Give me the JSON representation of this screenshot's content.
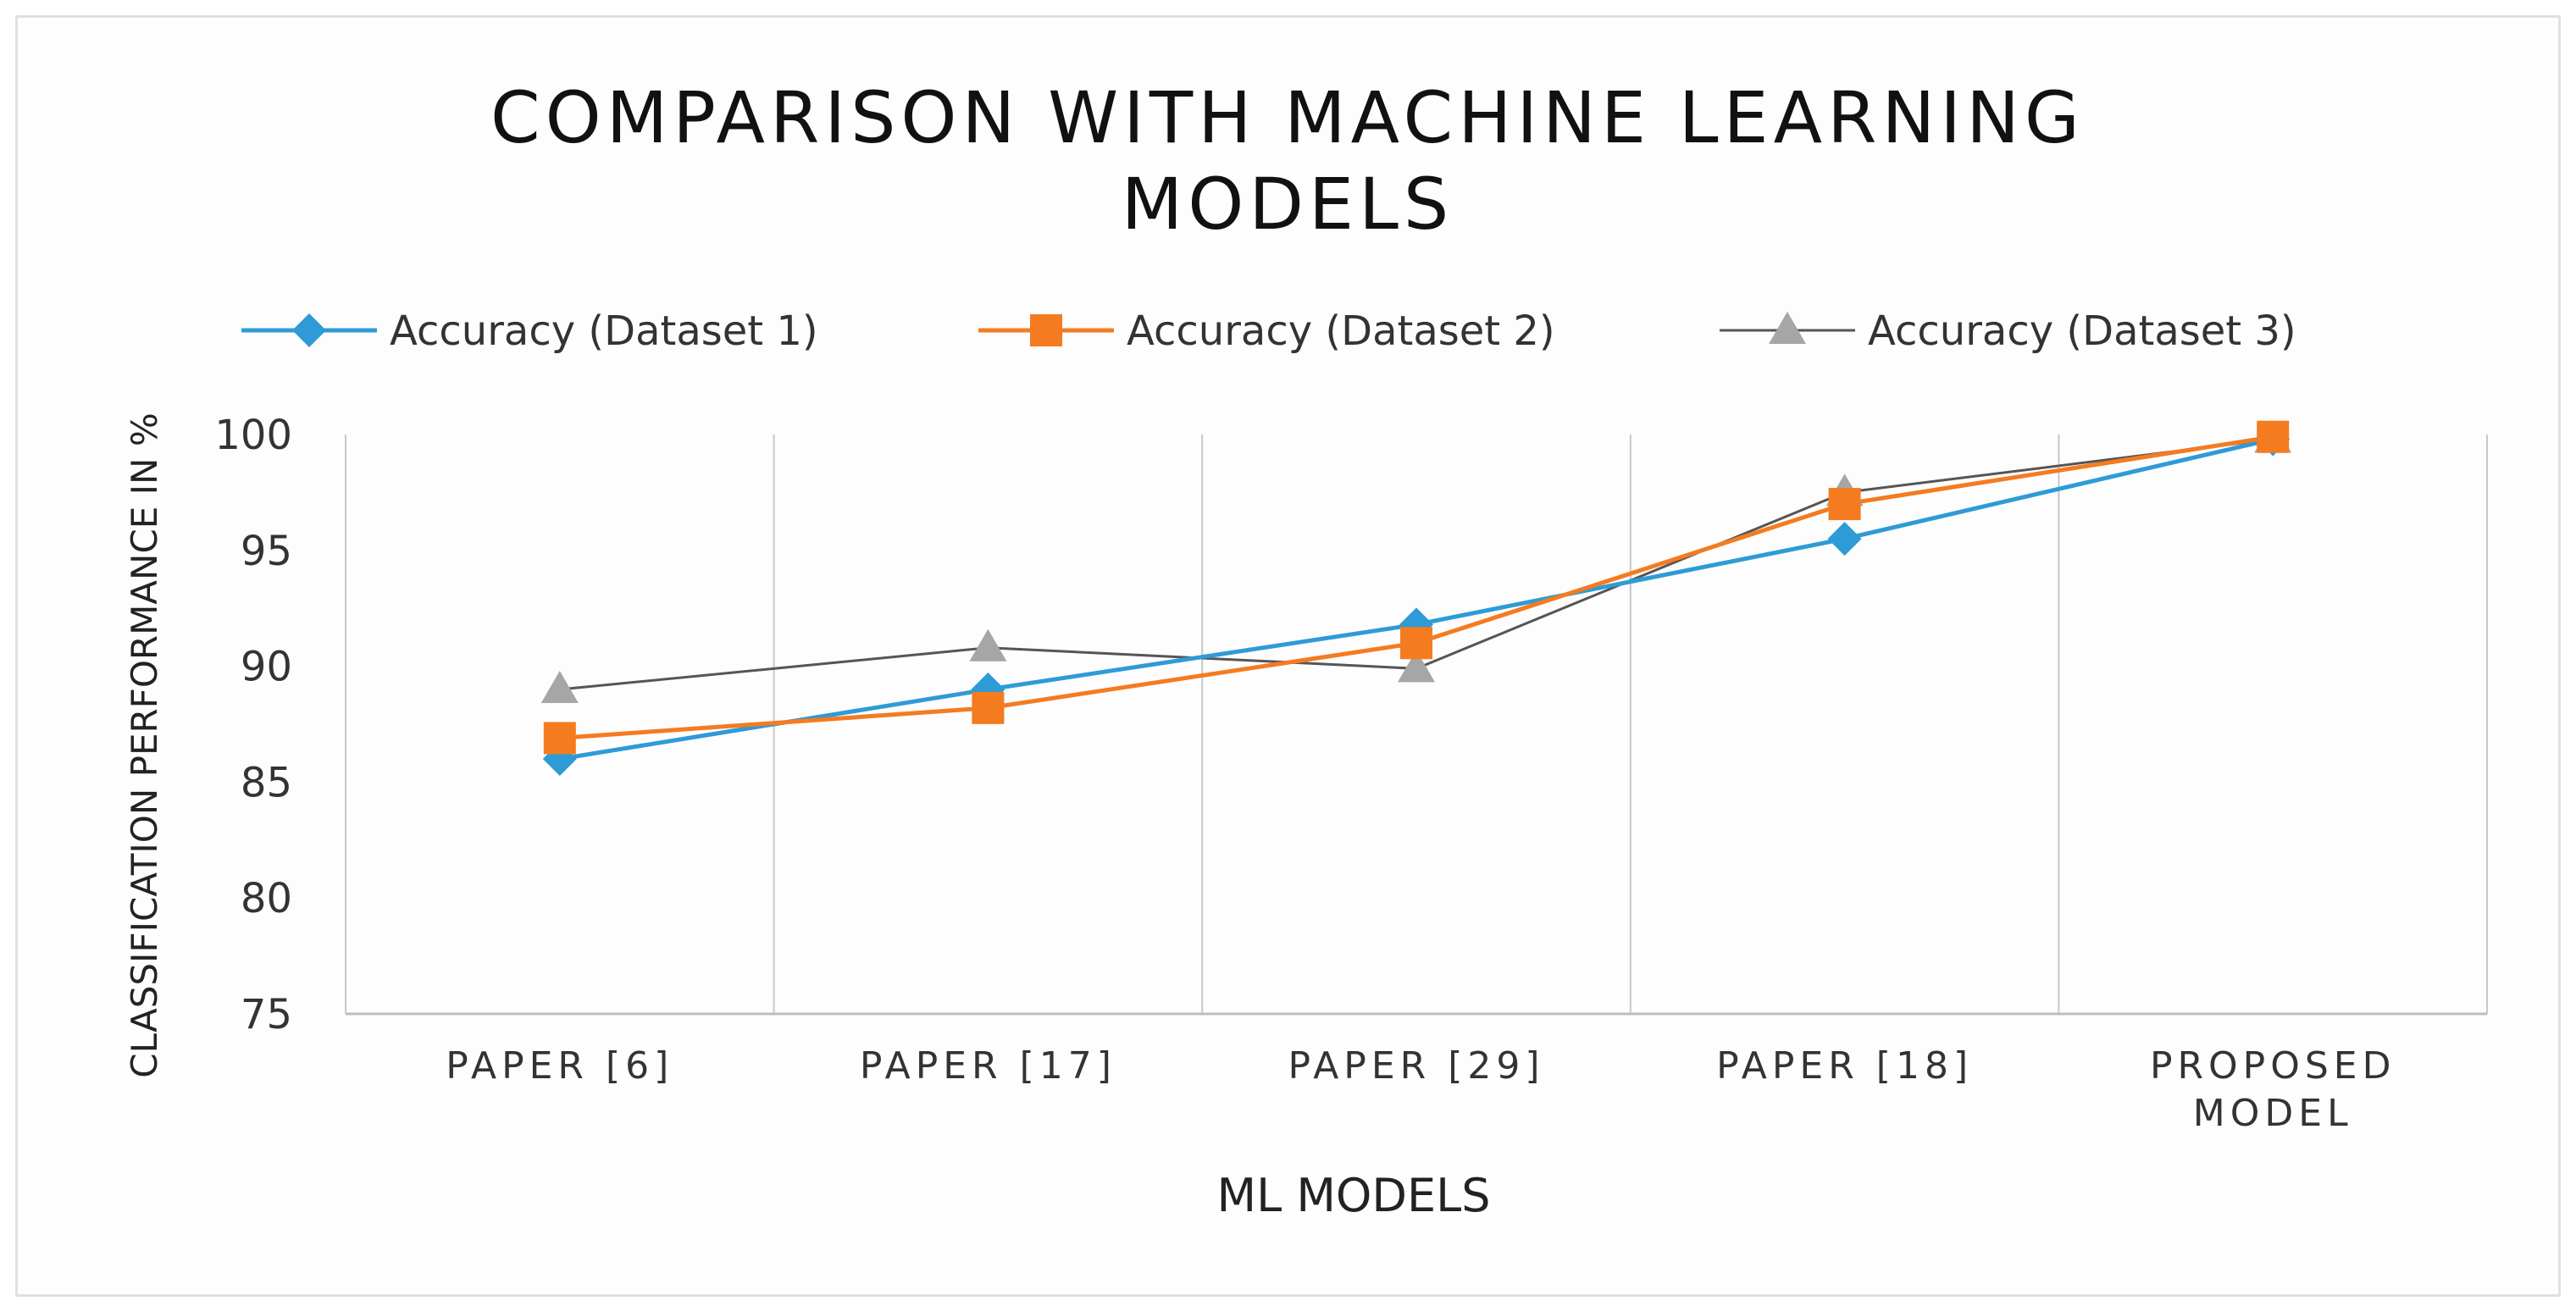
{
  "chart_data": {
    "type": "line",
    "title": "COMPARISON WITH MACHINE LEARNING MODELS",
    "title_lines": [
      "COMPARISON WITH MACHINE LEARNING",
      "MODELS"
    ],
    "xlabel": "ML MODELS",
    "ylabel": "CLASSIFICATION PERFORMANCE IN %",
    "categories": [
      "PAPER [6]",
      "PAPER [17]",
      "PAPER [29]",
      "PAPER [18]",
      "PROPOSED MODEL"
    ],
    "category_lines": [
      [
        "PAPER [6]"
      ],
      [
        "PAPER [17]"
      ],
      [
        "PAPER [29]"
      ],
      [
        "PAPER [18]"
      ],
      [
        "PROPOSED",
        "MODEL"
      ]
    ],
    "ylim": [
      75,
      100
    ],
    "yticks": [
      "75",
      "80",
      "85",
      "90",
      "95",
      "100"
    ],
    "grid": "vertical",
    "legend_position": "top",
    "series": [
      {
        "name": "Accuracy (Dataset 1)",
        "color": "#2e9bd6",
        "marker": "diamond",
        "values": [
          86,
          89,
          91.8,
          95.5,
          99.8
        ]
      },
      {
        "name": "Accuracy (Dataset 2)",
        "color": "#f47b20",
        "marker": "square",
        "values": [
          86.9,
          88.2,
          91,
          97,
          99.9
        ]
      },
      {
        "name": "Accuracy (Dataset 3)",
        "color": "#555555",
        "marker_color": "#a6a6a6",
        "marker": "triangle",
        "values": [
          89,
          90.8,
          89.9,
          97.5,
          99.8
        ]
      }
    ]
  }
}
